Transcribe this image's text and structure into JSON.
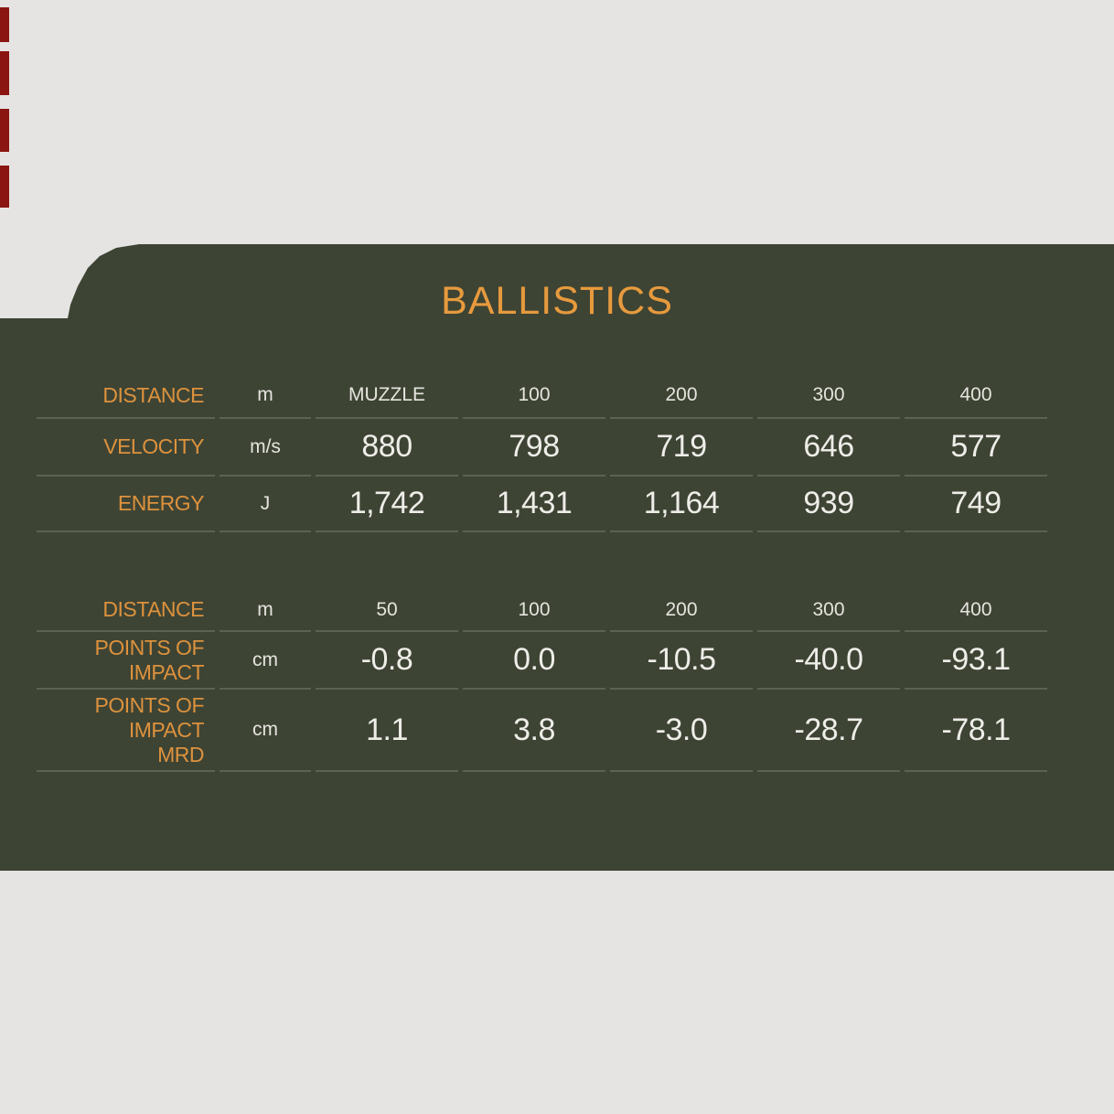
{
  "title": "BALLISTICS",
  "colors": {
    "page_bg": "#e5e4e2",
    "panel_bg": "#3e4434",
    "accent_orange": "#e79a3d",
    "value_text": "#eeede8",
    "separator": "#5b624f",
    "edge_mark_red": "#8b1510"
  },
  "ballistics_table": {
    "header": {
      "label": "DISTANCE",
      "unit": "m",
      "columns": [
        "MUZZLE",
        "100",
        "200",
        "300",
        "400"
      ]
    },
    "rows": [
      {
        "label": "VELOCITY",
        "unit": "m/s",
        "values": [
          "880",
          "798",
          "719",
          "646",
          "577"
        ]
      },
      {
        "label": "ENERGY",
        "unit": "J",
        "values": [
          "1,742",
          "1,431",
          "1,164",
          "939",
          "749"
        ]
      }
    ]
  },
  "impact_table": {
    "header": {
      "label": "DISTANCE",
      "unit": "m",
      "columns": [
        "50",
        "100",
        "200",
        "300",
        "400"
      ]
    },
    "rows": [
      {
        "label": "POINTS OF IMPACT",
        "unit": "cm",
        "values": [
          "-0.8",
          "0.0",
          "-10.5",
          "-40.0",
          "-93.1"
        ]
      },
      {
        "label": "POINTS OF IMPACT",
        "label_line2": "MRD",
        "unit": "cm",
        "values": [
          "1.1",
          "3.8",
          "-3.0",
          "-28.7",
          "-78.1"
        ]
      }
    ]
  }
}
